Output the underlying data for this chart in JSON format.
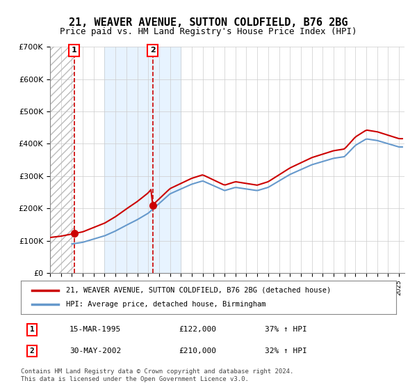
{
  "title": "21, WEAVER AVENUE, SUTTON COLDFIELD, B76 2BG",
  "subtitle": "Price paid vs. HM Land Registry's House Price Index (HPI)",
  "xlabel": "",
  "ylabel": "",
  "ylim": [
    0,
    700000
  ],
  "yticks": [
    0,
    100000,
    200000,
    300000,
    400000,
    500000,
    600000,
    700000
  ],
  "ytick_labels": [
    "£0",
    "£100K",
    "£200K",
    "£300K",
    "£400K",
    "£500K",
    "£600K",
    "£700K"
  ],
  "xlim_start": 1993.0,
  "xlim_end": 2025.5,
  "purchase1_year": 1995.2,
  "purchase1_price": 122000,
  "purchase1_label": "1",
  "purchase1_date": "15-MAR-1995",
  "purchase1_hpi": "37% ↑ HPI",
  "purchase2_year": 2002.4,
  "purchase2_price": 210000,
  "purchase2_label": "2",
  "purchase2_date": "30-MAY-2002",
  "purchase2_hpi": "32% ↑ HPI",
  "line_color_red": "#cc0000",
  "line_color_blue": "#6699cc",
  "marker_color": "#cc0000",
  "hatch_color": "#cccccc",
  "shade_color": "#ddeeff",
  "grid_color": "#cccccc",
  "bg_color": "#ffffff",
  "legend_line1": "21, WEAVER AVENUE, SUTTON COLDFIELD, B76 2BG (detached house)",
  "legend_line2": "HPI: Average price, detached house, Birmingham",
  "footer": "Contains HM Land Registry data © Crown copyright and database right 2024.\nThis data is licensed under the Open Government Licence v3.0.",
  "title_fontsize": 11,
  "subtitle_fontsize": 9,
  "tick_fontsize": 8
}
